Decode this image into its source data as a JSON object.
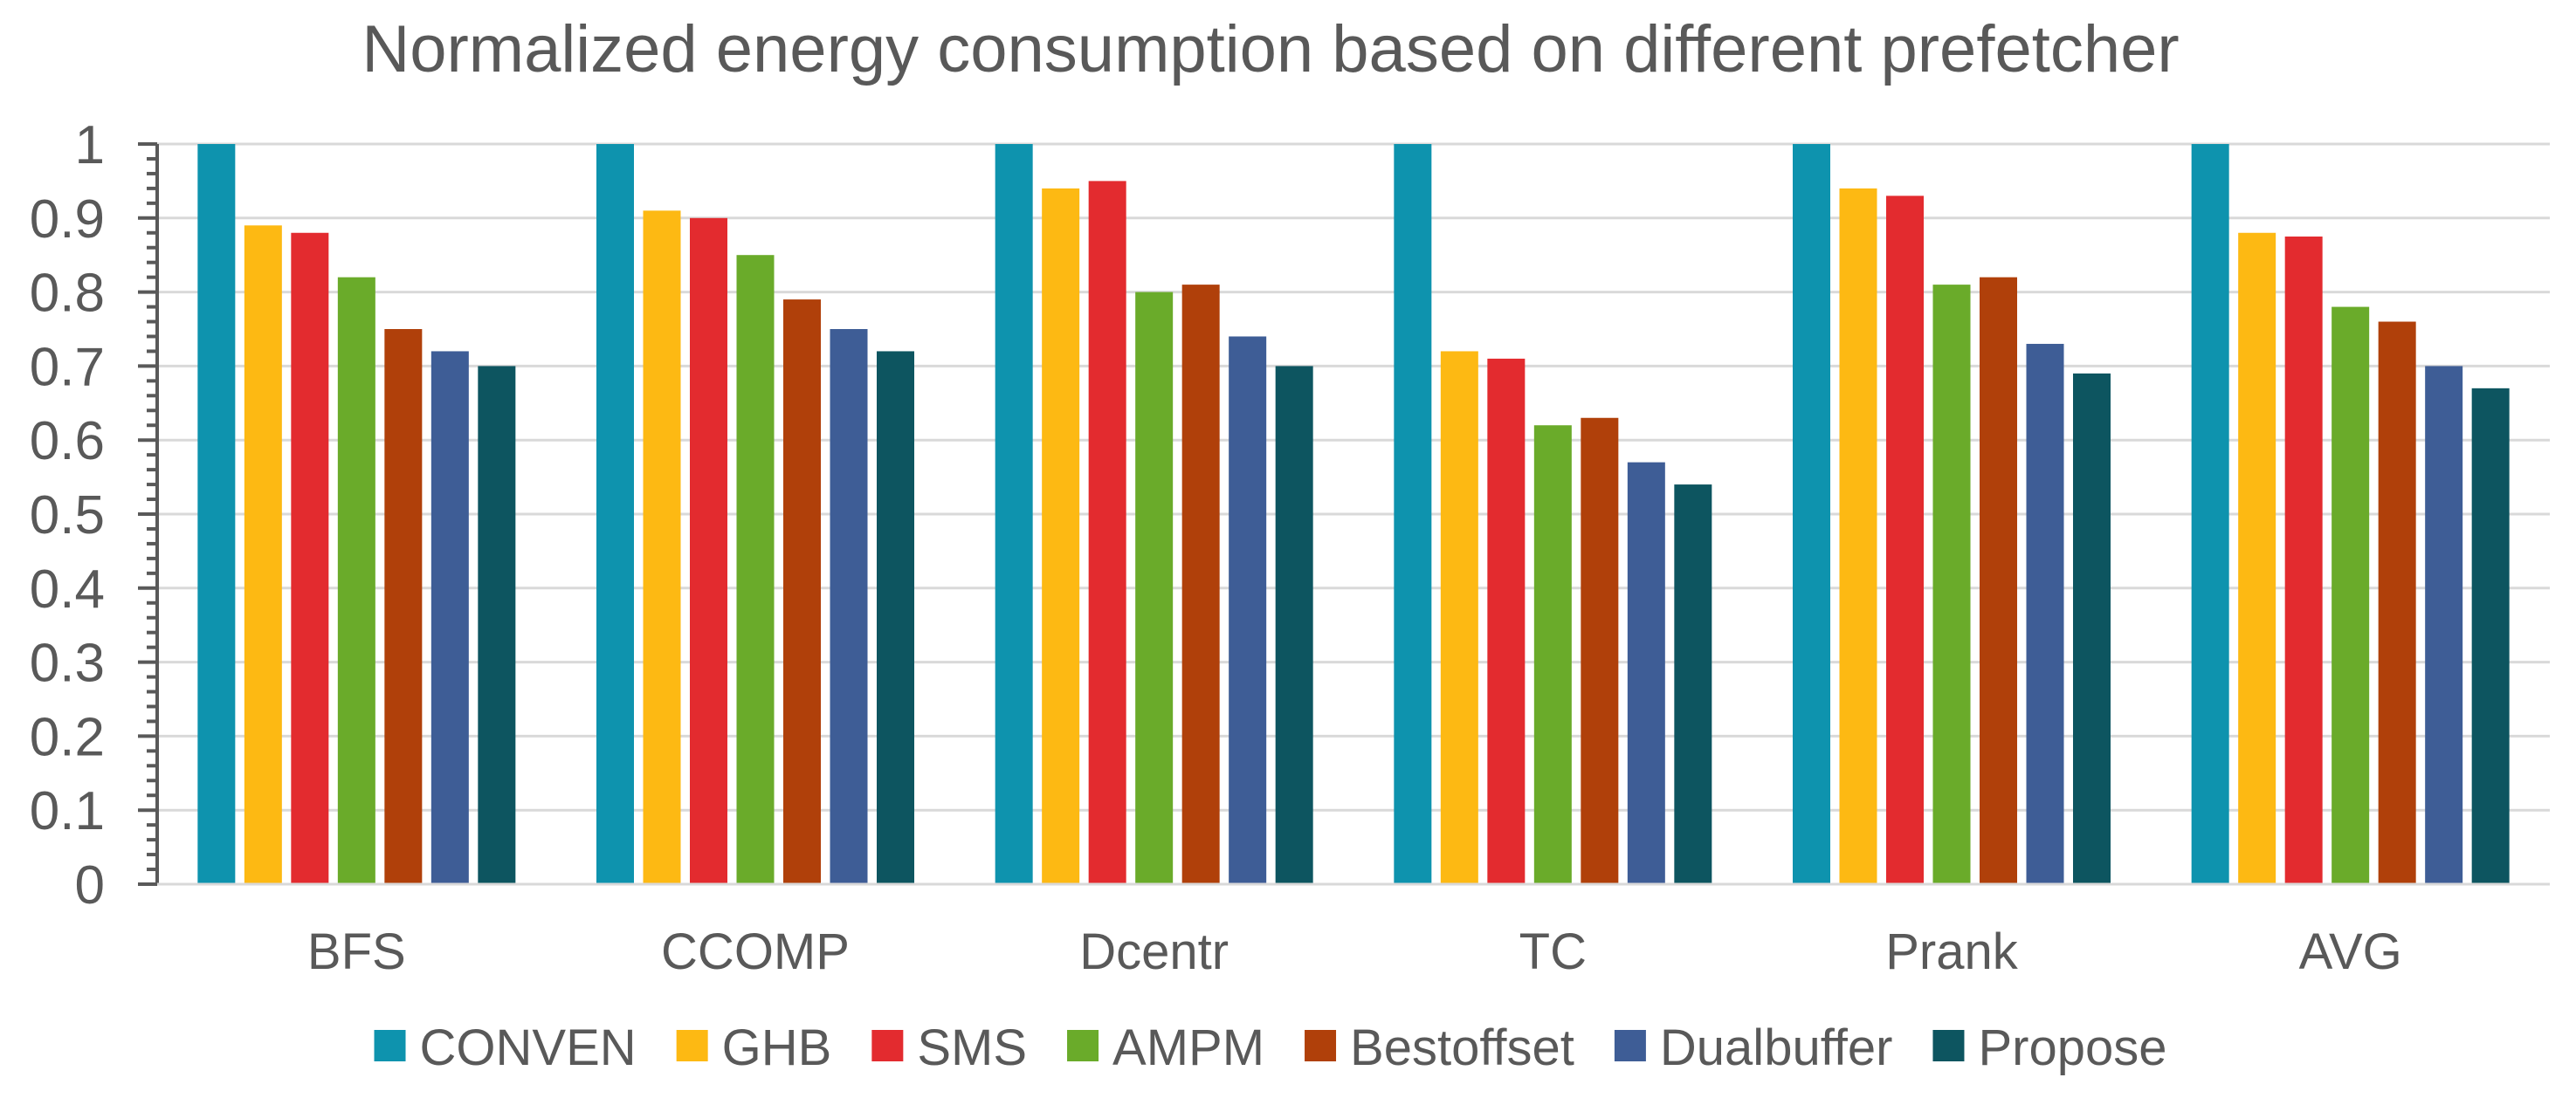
{
  "chart_data": {
    "type": "bar",
    "title": "Normalized energy consumption based on different prefetcher",
    "xlabel": "",
    "ylabel": "",
    "ylim": [
      0,
      1
    ],
    "yticks": [
      "0",
      "0.1",
      "0.2",
      "0.3",
      "0.4",
      "0.5",
      "0.6",
      "0.7",
      "0.8",
      "0.9",
      "1"
    ],
    "grid": true,
    "legend_position": "bottom",
    "categories": [
      "BFS",
      "CCOMP",
      "Dcentr",
      "TC",
      "Prank",
      "AVG"
    ],
    "series": [
      {
        "name": "CONVEN",
        "color": "#0E93AE",
        "values": [
          1,
          1,
          1,
          1,
          1,
          1
        ]
      },
      {
        "name": "GHB",
        "color": "#FDB913",
        "values": [
          0.89,
          0.91,
          0.94,
          0.72,
          0.94,
          0.88
        ]
      },
      {
        "name": "SMS",
        "color": "#E32B2F",
        "values": [
          0.88,
          0.9,
          0.95,
          0.71,
          0.93,
          0.875
        ]
      },
      {
        "name": "AMPM",
        "color": "#6AAB2A",
        "values": [
          0.82,
          0.85,
          0.8,
          0.62,
          0.81,
          0.78
        ]
      },
      {
        "name": "Bestoffset",
        "color": "#B0400A",
        "values": [
          0.75,
          0.79,
          0.81,
          0.63,
          0.82,
          0.76
        ]
      },
      {
        "name": "Dualbuffer",
        "color": "#3E5D96",
        "values": [
          0.72,
          0.75,
          0.74,
          0.57,
          0.73,
          0.7
        ]
      },
      {
        "name": "Propose",
        "color": "#0D5560",
        "values": [
          0.7,
          0.72,
          0.7,
          0.54,
          0.69,
          0.67
        ]
      }
    ]
  }
}
